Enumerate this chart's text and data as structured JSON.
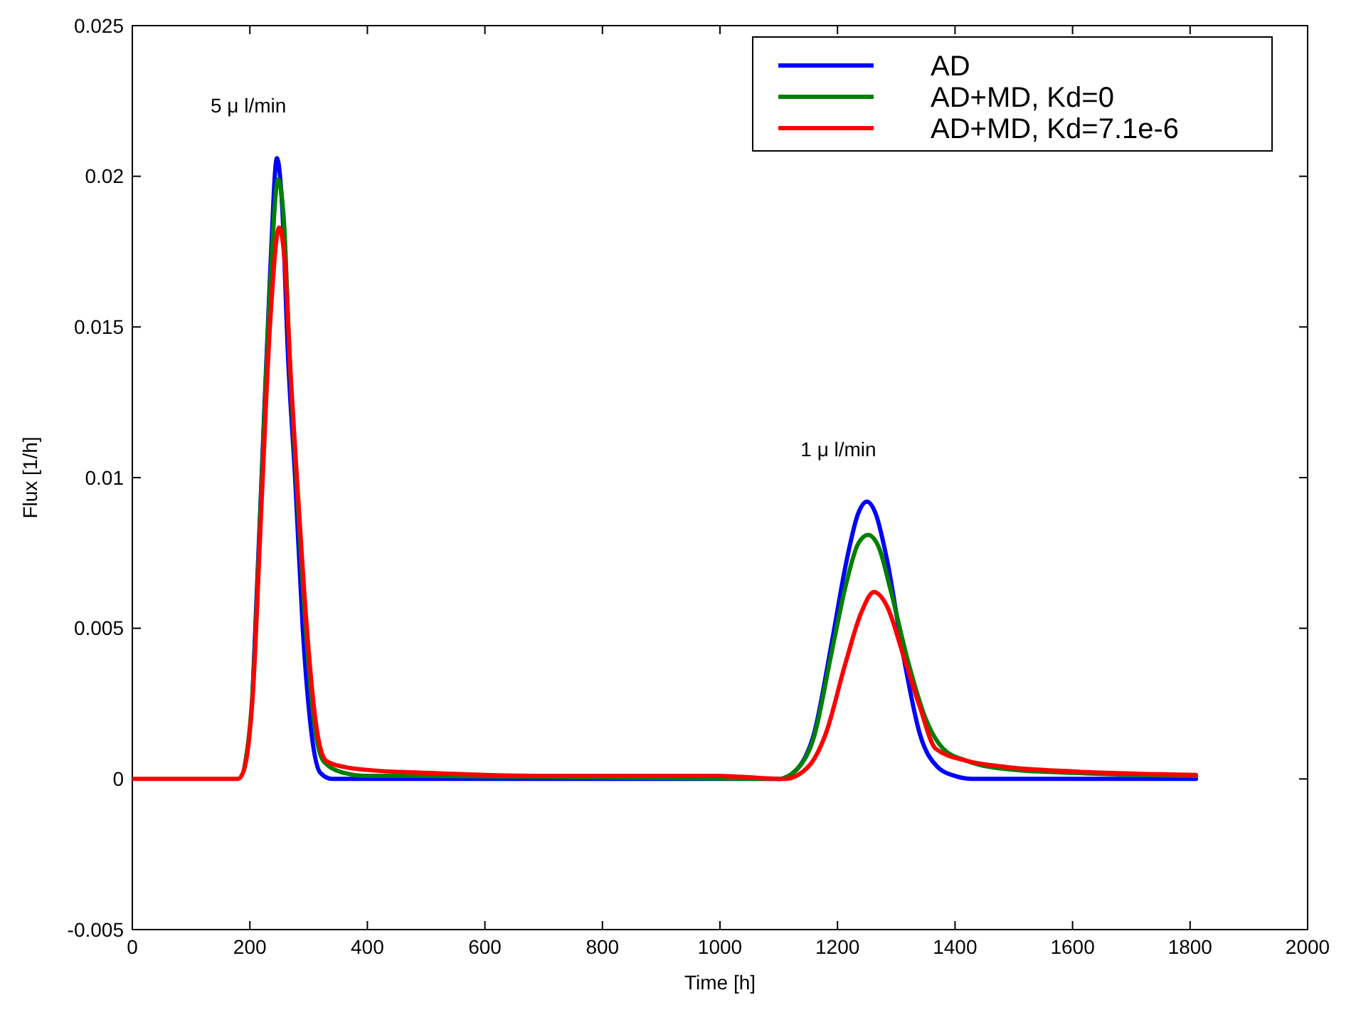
{
  "chart_data": {
    "type": "line",
    "xlabel": "Time [h]",
    "ylabel": "Flux [1/h]",
    "xlim": [
      0,
      2000
    ],
    "xticks": [
      0,
      200,
      400,
      600,
      800,
      1000,
      1200,
      1400,
      1600,
      1800,
      2000
    ],
    "ylim": [
      -0.005,
      0.025
    ],
    "yticks": [
      -0.005,
      0,
      0.005,
      0.01,
      0.015,
      0.02,
      0.025
    ],
    "grid": false,
    "legend": "top right",
    "marker": "none",
    "line_style": "solid",
    "annotations": [
      "5 μ l/min",
      "1 μ l/min"
    ],
    "series": [
      {
        "name": "AD",
        "color": "#0000ff",
        "x": [
          205,
          220,
          235,
          246,
          255,
          265,
          277,
          290,
          305,
          320,
          340,
          1100,
          1130,
          1160,
          1190,
          1215,
          1235,
          1250,
          1265,
          1285,
          1312,
          1340,
          1370,
          1400,
          1430,
          1810
        ],
        "values": [
          0.003,
          0.01,
          0.017,
          0.0206,
          0.019,
          0.014,
          0.01,
          0.005,
          0.0015,
          0.0002,
          0,
          0,
          0.0003,
          0.0015,
          0.0045,
          0.0072,
          0.0088,
          0.0092,
          0.0088,
          0.0072,
          0.0041,
          0.0015,
          0.0004,
          0.0001,
          0,
          0
        ]
      },
      {
        "name": "AD+MD, Kd=0",
        "color": "#008000",
        "x": [
          190,
          205,
          220,
          235,
          248,
          258,
          268,
          280,
          295,
          310,
          325,
          360,
          400,
          500,
          1100,
          1130,
          1160,
          1190,
          1215,
          1235,
          1252,
          1270,
          1290,
          1320,
          1350,
          1380,
          1420,
          1500,
          1600,
          1810
        ],
        "values": [
          0.0003,
          0.003,
          0.0098,
          0.0165,
          0.0199,
          0.0185,
          0.0138,
          0.0097,
          0.005,
          0.0018,
          0.0006,
          0.0002,
          0.0001,
          0.0001,
          0,
          0.0003,
          0.0014,
          0.0042,
          0.0065,
          0.0078,
          0.0081,
          0.0077,
          0.0063,
          0.0039,
          0.002,
          0.001,
          0.0006,
          0.0003,
          0.0002,
          0.0001
        ]
      },
      {
        "name": "AD+MD, Kd=7.1e-6",
        "color": "#ff0000",
        "x": [
          0,
          180,
          190,
          205,
          220,
          235,
          250,
          260,
          270,
          282,
          297,
          312,
          330,
          360,
          400,
          500,
          700,
          1000,
          1110,
          1150,
          1180,
          1213,
          1240,
          1262,
          1285,
          1312,
          1340,
          1367,
          1420,
          1486,
          1600,
          1810
        ],
        "values": [
          0,
          0,
          0.0003,
          0.0028,
          0.0092,
          0.0153,
          0.0183,
          0.017,
          0.0132,
          0.0094,
          0.005,
          0.0019,
          0.0006,
          0.0004,
          0.0003,
          0.0002,
          0.0001,
          0.0001,
          0,
          0.0004,
          0.0015,
          0.0038,
          0.0055,
          0.0062,
          0.0057,
          0.0041,
          0.0024,
          0.001,
          0.0006,
          0.0004,
          0.00025,
          0.00013
        ]
      }
    ]
  }
}
